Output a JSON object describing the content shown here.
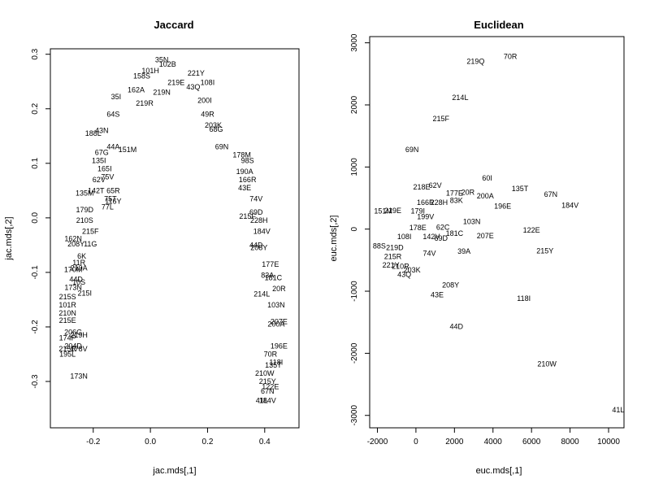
{
  "chart_data": [
    {
      "type": "scatter",
      "title": "Jaccard",
      "xlabel": "jac.mds[,1]",
      "ylabel": "jac.mds[,2]",
      "xlim": [
        -0.35,
        0.52
      ],
      "ylim": [
        -0.385,
        0.31
      ],
      "xticks": [
        -0.2,
        0.0,
        0.2,
        0.4
      ],
      "xtick_labels": [
        "-0.2",
        "0.0",
        "0.2",
        "0.4"
      ],
      "yticks": [
        -0.3,
        -0.2,
        -0.1,
        0.0,
        0.1,
        0.2,
        0.3
      ],
      "ytick_labels": [
        "-0.3",
        "-0.2",
        "-0.1",
        "0.0",
        "0.1",
        "0.2",
        "0.3"
      ],
      "points": [
        {
          "label": "35N",
          "x": 0.04,
          "y": 0.29
        },
        {
          "label": "102B",
          "x": 0.06,
          "y": 0.282
        },
        {
          "label": "101H",
          "x": 0.0,
          "y": 0.27
        },
        {
          "label": "158S",
          "x": -0.03,
          "y": 0.26
        },
        {
          "label": "221Y",
          "x": 0.16,
          "y": 0.265
        },
        {
          "label": "219E",
          "x": 0.09,
          "y": 0.248
        },
        {
          "label": "162A",
          "x": -0.05,
          "y": 0.235
        },
        {
          "label": "219N",
          "x": 0.04,
          "y": 0.23
        },
        {
          "label": "43Q",
          "x": 0.15,
          "y": 0.24
        },
        {
          "label": "108I",
          "x": 0.2,
          "y": 0.248
        },
        {
          "label": "35I",
          "x": -0.12,
          "y": 0.222
        },
        {
          "label": "219R",
          "x": -0.02,
          "y": 0.21
        },
        {
          "label": "200I",
          "x": 0.19,
          "y": 0.215
        },
        {
          "label": "49R",
          "x": 0.2,
          "y": 0.19
        },
        {
          "label": "203K",
          "x": 0.22,
          "y": 0.17
        },
        {
          "label": "68G",
          "x": 0.23,
          "y": 0.162
        },
        {
          "label": "64S",
          "x": -0.13,
          "y": 0.19
        },
        {
          "label": "43N",
          "x": -0.17,
          "y": 0.16
        },
        {
          "label": "188L",
          "x": -0.2,
          "y": 0.155
        },
        {
          "label": "44A",
          "x": -0.13,
          "y": 0.13
        },
        {
          "label": "151M",
          "x": -0.08,
          "y": 0.125
        },
        {
          "label": "67G",
          "x": -0.17,
          "y": 0.12
        },
        {
          "label": "135I",
          "x": -0.18,
          "y": 0.105
        },
        {
          "label": "165I",
          "x": -0.16,
          "y": 0.09
        },
        {
          "label": "69N",
          "x": 0.25,
          "y": 0.13
        },
        {
          "label": "178M",
          "x": 0.32,
          "y": 0.115
        },
        {
          "label": "98S",
          "x": 0.34,
          "y": 0.105
        },
        {
          "label": "190A",
          "x": 0.33,
          "y": 0.085
        },
        {
          "label": "166R",
          "x": 0.34,
          "y": 0.07
        },
        {
          "label": "43E",
          "x": 0.33,
          "y": 0.055
        },
        {
          "label": "74V",
          "x": 0.37,
          "y": 0.035
        },
        {
          "label": "69D",
          "x": 0.37,
          "y": 0.01
        },
        {
          "label": "215F",
          "x": 0.34,
          "y": 0.003
        },
        {
          "label": "228H",
          "x": 0.38,
          "y": -0.005
        },
        {
          "label": "184V",
          "x": 0.39,
          "y": -0.025
        },
        {
          "label": "44D",
          "x": 0.37,
          "y": -0.05
        },
        {
          "label": "208Y",
          "x": 0.38,
          "y": -0.055
        },
        {
          "label": "177E",
          "x": 0.42,
          "y": -0.085
        },
        {
          "label": "83A",
          "x": 0.41,
          "y": -0.105
        },
        {
          "label": "181C",
          "x": 0.43,
          "y": -0.11
        },
        {
          "label": "20R",
          "x": 0.45,
          "y": -0.13
        },
        {
          "label": "214L",
          "x": 0.39,
          "y": -0.14
        },
        {
          "label": "103N",
          "x": 0.44,
          "y": -0.16
        },
        {
          "label": "207E",
          "x": 0.45,
          "y": -0.19
        },
        {
          "label": "200A",
          "x": 0.44,
          "y": -0.195
        },
        {
          "label": "196E",
          "x": 0.45,
          "y": -0.235
        },
        {
          "label": "70R",
          "x": 0.42,
          "y": -0.25
        },
        {
          "label": "118I",
          "x": 0.44,
          "y": -0.265
        },
        {
          "label": "135T",
          "x": 0.43,
          "y": -0.27
        },
        {
          "label": "210W",
          "x": 0.4,
          "y": -0.285
        },
        {
          "label": "215Y",
          "x": 0.41,
          "y": -0.3
        },
        {
          "label": "122E",
          "x": 0.42,
          "y": -0.31
        },
        {
          "label": "67N",
          "x": 0.41,
          "y": -0.318
        },
        {
          "label": "41L",
          "x": 0.39,
          "y": -0.335
        },
        {
          "label": "184V",
          "x": 0.41,
          "y": -0.335
        },
        {
          "label": "75V",
          "x": -0.15,
          "y": 0.075
        },
        {
          "label": "62V",
          "x": -0.18,
          "y": 0.07
        },
        {
          "label": "142T",
          "x": -0.19,
          "y": 0.05
        },
        {
          "label": "65R",
          "x": -0.13,
          "y": 0.05
        },
        {
          "label": "135M",
          "x": -0.23,
          "y": 0.045
        },
        {
          "label": "75T",
          "x": -0.14,
          "y": 0.035
        },
        {
          "label": "116Y",
          "x": -0.13,
          "y": 0.03
        },
        {
          "label": "77L",
          "x": -0.15,
          "y": 0.02
        },
        {
          "label": "179D",
          "x": -0.23,
          "y": 0.015
        },
        {
          "label": "210S",
          "x": -0.23,
          "y": -0.005
        },
        {
          "label": "215F",
          "x": -0.21,
          "y": -0.025
        },
        {
          "label": "162N",
          "x": -0.27,
          "y": -0.038
        },
        {
          "label": "208Y",
          "x": -0.26,
          "y": -0.048
        },
        {
          "label": "11G",
          "x": -0.21,
          "y": -0.048
        },
        {
          "label": "6K",
          "x": -0.24,
          "y": -0.07
        },
        {
          "label": "11R",
          "x": -0.25,
          "y": -0.082
        },
        {
          "label": "210A",
          "x": -0.25,
          "y": -0.092
        },
        {
          "label": "170M",
          "x": -0.27,
          "y": -0.095
        },
        {
          "label": "44D",
          "x": -0.26,
          "y": -0.113
        },
        {
          "label": "10S",
          "x": -0.25,
          "y": -0.118
        },
        {
          "label": "173N",
          "x": -0.27,
          "y": -0.128
        },
        {
          "label": "215I",
          "x": -0.23,
          "y": -0.138
        },
        {
          "label": "215S",
          "x": -0.29,
          "y": -0.145
        },
        {
          "label": "101R",
          "x": -0.29,
          "y": -0.16
        },
        {
          "label": "210N",
          "x": -0.29,
          "y": -0.175
        },
        {
          "label": "215E",
          "x": -0.29,
          "y": -0.188
        },
        {
          "label": "206G",
          "x": -0.27,
          "y": -0.21
        },
        {
          "label": "219H",
          "x": -0.25,
          "y": -0.215
        },
        {
          "label": "174P",
          "x": -0.29,
          "y": -0.22
        },
        {
          "label": "204D",
          "x": -0.27,
          "y": -0.235
        },
        {
          "label": "215R",
          "x": -0.29,
          "y": -0.24
        },
        {
          "label": "178V",
          "x": -0.25,
          "y": -0.24
        },
        {
          "label": "195L",
          "x": -0.29,
          "y": -0.25
        },
        {
          "label": "173N",
          "x": -0.25,
          "y": -0.29
        }
      ],
      "point_labels_in_image": [
        "35N",
        "102B",
        "101H",
        "158S",
        "221Y",
        "219E",
        "162A",
        "219N",
        "43Q",
        "108I",
        "35I",
        "219R",
        "200I",
        "49R",
        "203K",
        "68G",
        "64S",
        "43N",
        "188L",
        "44A",
        "151M",
        "67G",
        "135I",
        "165I",
        "69N",
        "178M",
        "98S",
        "190A",
        "166R",
        "43E",
        "74V",
        "69D",
        "215F",
        "228H",
        "184V",
        "44D",
        "208Y",
        "177E",
        "83A",
        "181C",
        "20R",
        "214L",
        "103N",
        "207E",
        "200A",
        "196E",
        "70R",
        "118I",
        "135T",
        "210W",
        "215Y",
        "122E",
        "67N",
        "41L",
        "75V",
        "62V",
        "142T",
        "65R",
        "135M",
        "75T",
        "116Y",
        "77L",
        "179D",
        "210S",
        "162N",
        "11G",
        "6K",
        "11R",
        "210A",
        "170M",
        "10S",
        "173N",
        "215I",
        "215S",
        "101R",
        "210N",
        "215E",
        "206G",
        "219H",
        "174P",
        "204D",
        "215R",
        "178V",
        "195L"
      ]
    },
    {
      "type": "scatter",
      "title": "Euclidean",
      "xlabel": "euc.mds[,1]",
      "ylabel": "euc.mds[,2]",
      "xlim": [
        -2400,
        10800
      ],
      "ylim": [
        -3200,
        3100
      ],
      "xticks": [
        -2000,
        0,
        2000,
        4000,
        6000,
        8000,
        10000
      ],
      "xtick_labels": [
        "-2000",
        "0",
        "2000",
        "4000",
        "6000",
        "8000",
        "10000"
      ],
      "yticks": [
        -3000,
        -2000,
        -1000,
        0,
        1000,
        2000,
        3000
      ],
      "ytick_labels": [
        "-3000",
        "-2000",
        "-1000",
        "0",
        "1000",
        "2000",
        "3000"
      ],
      "points": [
        {
          "label": "219Q",
          "x": 3100,
          "y": 2700
        },
        {
          "label": "70R",
          "x": 4900,
          "y": 2780
        },
        {
          "label": "214L",
          "x": 2300,
          "y": 2120
        },
        {
          "label": "215F",
          "x": 1300,
          "y": 1780
        },
        {
          "label": "69N",
          "x": -200,
          "y": 1280
        },
        {
          "label": "60I",
          "x": 3700,
          "y": 820
        },
        {
          "label": "135T",
          "x": 5400,
          "y": 650
        },
        {
          "label": "67N",
          "x": 7000,
          "y": 560
        },
        {
          "label": "184V",
          "x": 8000,
          "y": 380
        },
        {
          "label": "218E",
          "x": 300,
          "y": 680
        },
        {
          "label": "62V",
          "x": 1000,
          "y": 700
        },
        {
          "label": "177E",
          "x": 2000,
          "y": 580
        },
        {
          "label": "20R",
          "x": 2700,
          "y": 590
        },
        {
          "label": "200A",
          "x": 3600,
          "y": 530
        },
        {
          "label": "83K",
          "x": 2100,
          "y": 460
        },
        {
          "label": "196E",
          "x": 4500,
          "y": 370
        },
        {
          "label": "166R",
          "x": 500,
          "y": 430
        },
        {
          "label": "228H",
          "x": 1200,
          "y": 430
        },
        {
          "label": "103N",
          "x": 2900,
          "y": 120
        },
        {
          "label": "122E",
          "x": 6000,
          "y": -20
        },
        {
          "label": "207E",
          "x": 3600,
          "y": -110
        },
        {
          "label": "181C",
          "x": 2000,
          "y": -70
        },
        {
          "label": "215Y",
          "x": 6700,
          "y": -350
        },
        {
          "label": "74V",
          "x": 700,
          "y": -390
        },
        {
          "label": "39A",
          "x": 2500,
          "y": -360
        },
        {
          "label": "43Q",
          "x": -600,
          "y": -730
        },
        {
          "label": "208Y",
          "x": 1800,
          "y": -900
        },
        {
          "label": "43E",
          "x": 1100,
          "y": -1060
        },
        {
          "label": "118I",
          "x": 5600,
          "y": -1120
        },
        {
          "label": "44D",
          "x": 2100,
          "y": -1570
        },
        {
          "label": "210W",
          "x": 6800,
          "y": -2170
        },
        {
          "label": "41L",
          "x": 10500,
          "y": -2910
        },
        {
          "label": "151M",
          "x": -1700,
          "y": 290
        },
        {
          "label": "219E",
          "x": -1200,
          "y": 300
        },
        {
          "label": "179I",
          "x": 100,
          "y": 290
        },
        {
          "label": "199V",
          "x": 500,
          "y": 200
        },
        {
          "label": "142V",
          "x": 800,
          "y": -120
        },
        {
          "label": "69D",
          "x": 1300,
          "y": -150
        },
        {
          "label": "62C",
          "x": 1400,
          "y": 30
        },
        {
          "label": "178E",
          "x": 100,
          "y": 20
        },
        {
          "label": "108I",
          "x": -600,
          "y": -120
        },
        {
          "label": "219D",
          "x": -1100,
          "y": -300
        },
        {
          "label": "203K",
          "x": -200,
          "y": -660
        },
        {
          "label": "210R",
          "x": -800,
          "y": -600
        },
        {
          "label": "215R",
          "x": -1200,
          "y": -440
        },
        {
          "label": "221Y",
          "x": -1300,
          "y": -580
        },
        {
          "label": "88S",
          "x": -1900,
          "y": -270
        }
      ],
      "point_labels_in_image": [
        "219Q",
        "70R",
        "214L",
        "215F",
        "69N",
        "60I",
        "135T",
        "67N",
        "184V",
        "218E",
        "62V",
        "177E",
        "20R",
        "200A",
        "83K",
        "196E",
        "166R",
        "228H",
        "103N",
        "122E",
        "207E",
        "181C",
        "215Y",
        "74V",
        "39A",
        "43Q",
        "208Y",
        "43E",
        "118I",
        "44D",
        "210W",
        "41L",
        "151M",
        "219E",
        "179I",
        "199V",
        "142V",
        "69D",
        "62C",
        "178E",
        "108I",
        "219D",
        "203K",
        "210R",
        "215R",
        "221Y",
        "88S"
      ]
    }
  ]
}
